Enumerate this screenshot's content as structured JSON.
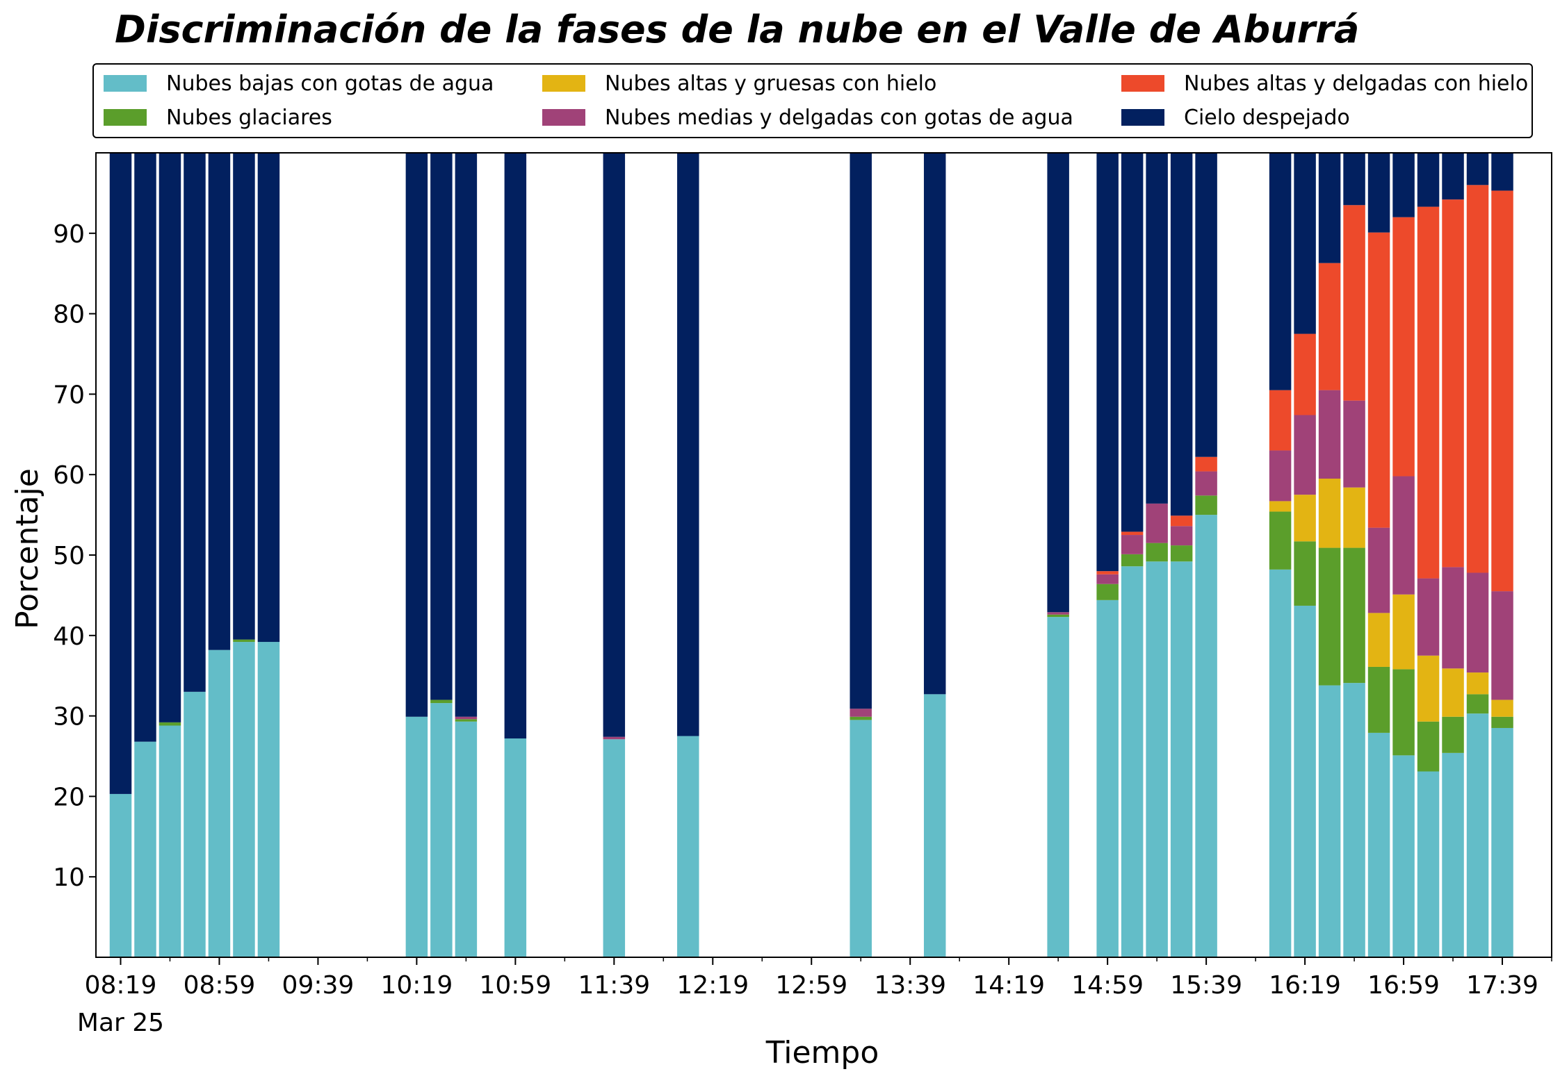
{
  "chart_data": {
    "type": "bar",
    "stacked": true,
    "title": "Discriminación de la fases de la nube en el Valle de Aburrá",
    "xlabel": "Tiempo",
    "ylabel": "Porcentaje",
    "ylim": [
      0,
      100
    ],
    "yticks": [
      10,
      20,
      30,
      40,
      50,
      60,
      70,
      80,
      90
    ],
    "x_tick_labels": [
      "08:19",
      "08:59",
      "09:39",
      "10:19",
      "10:59",
      "11:39",
      "12:19",
      "12:59",
      "13:39",
      "14:19",
      "14:59",
      "15:39",
      "16:19",
      "16:59",
      "17:39"
    ],
    "x_date_label": "Mar 25",
    "grid": false,
    "legend_position": "top",
    "legend": {
      "items": [
        {
          "name": "Nubes bajas con gotas de agua",
          "color": "#63bdc8"
        },
        {
          "name": "Nubes glaciares",
          "color": "#5b9e2b"
        },
        {
          "name": "Nubes altas y gruesas con hielo",
          "color": "#e3b413"
        },
        {
          "name": "Nubes medias y delgadas con gotas de agua",
          "color": "#a04278"
        },
        {
          "name": "Nubes altas y delgadas con hielo",
          "color": "#ed4a2b"
        },
        {
          "name": "Cielo despejado",
          "color": "#02205f"
        }
      ]
    },
    "categories": [
      "08:19",
      "08:29",
      "08:39",
      "08:49",
      "08:59",
      "09:09",
      "09:19",
      "10:19",
      "10:29",
      "10:39",
      "10:59",
      "11:39",
      "12:09",
      "13:19",
      "13:49",
      "14:39",
      "14:59",
      "15:09",
      "15:19",
      "15:29",
      "15:39",
      "16:09",
      "16:19",
      "16:29",
      "16:39",
      "16:49",
      "16:59",
      "17:09",
      "17:19",
      "17:29",
      "17:39"
    ],
    "series": [
      {
        "name": "Nubes bajas con gotas de agua",
        "color": "#63bdc8",
        "values": [
          20.3,
          26.8,
          28.8,
          33.0,
          38.2,
          39.2,
          39.2,
          29.9,
          31.6,
          29.3,
          27.2,
          27.1,
          27.5,
          29.5,
          32.7,
          42.3,
          44.4,
          48.6,
          49.2,
          49.2,
          55.0,
          48.2,
          43.7,
          33.8,
          34.1,
          27.9,
          25.1,
          23.1,
          25.4,
          30.3,
          28.5
        ]
      },
      {
        "name": "Nubes glaciares",
        "color": "#5b9e2b",
        "values": [
          0,
          0,
          0.4,
          0,
          0,
          0.3,
          0,
          0,
          0.4,
          0.3,
          0,
          0,
          0,
          0.4,
          0,
          0.3,
          2.0,
          1.5,
          2.3,
          2.0,
          2.4,
          7.2,
          8.0,
          17.1,
          16.8,
          8.2,
          10.7,
          6.2,
          4.5,
          2.4,
          1.4
        ]
      },
      {
        "name": "Nubes altas y gruesas con hielo",
        "color": "#e3b413",
        "values": [
          0,
          0,
          0,
          0,
          0,
          0,
          0,
          0,
          0,
          0,
          0,
          0,
          0,
          0,
          0,
          0,
          0,
          0,
          0,
          0,
          0,
          1.3,
          5.8,
          8.6,
          7.5,
          6.7,
          9.3,
          8.2,
          6.0,
          2.7,
          2.1
        ]
      },
      {
        "name": "Nubes medias y delgadas con gotas de agua",
        "color": "#a04278",
        "values": [
          0,
          0,
          0,
          0,
          0,
          0,
          0,
          0,
          0,
          0.3,
          0,
          0.3,
          0,
          1.0,
          0,
          0.3,
          1.2,
          2.4,
          4.9,
          2.4,
          3.0,
          6.3,
          9.9,
          11.0,
          10.8,
          10.6,
          14.7,
          9.6,
          12.6,
          12.4,
          13.5
        ]
      },
      {
        "name": "Nubes altas y delgadas con hielo",
        "color": "#ed4a2b",
        "values": [
          0,
          0,
          0,
          0,
          0,
          0,
          0,
          0,
          0,
          0,
          0,
          0,
          0,
          0,
          0,
          0,
          0.4,
          0.4,
          0,
          1.3,
          1.8,
          7.5,
          10.1,
          15.8,
          24.3,
          36.7,
          32.2,
          46.2,
          45.7,
          48.2,
          49.8
        ]
      },
      {
        "name": "Cielo despejado",
        "color": "#02205f",
        "values": [
          79.7,
          73.2,
          70.8,
          67.0,
          61.8,
          60.5,
          60.8,
          70.1,
          68.0,
          70.1,
          72.8,
          72.6,
          72.5,
          69.1,
          67.3,
          57.1,
          52.0,
          47.1,
          43.6,
          45.1,
          37.8,
          29.5,
          22.5,
          13.7,
          6.5,
          9.9,
          8.0,
          6.7,
          5.8,
          4.0,
          4.7
        ]
      }
    ]
  }
}
